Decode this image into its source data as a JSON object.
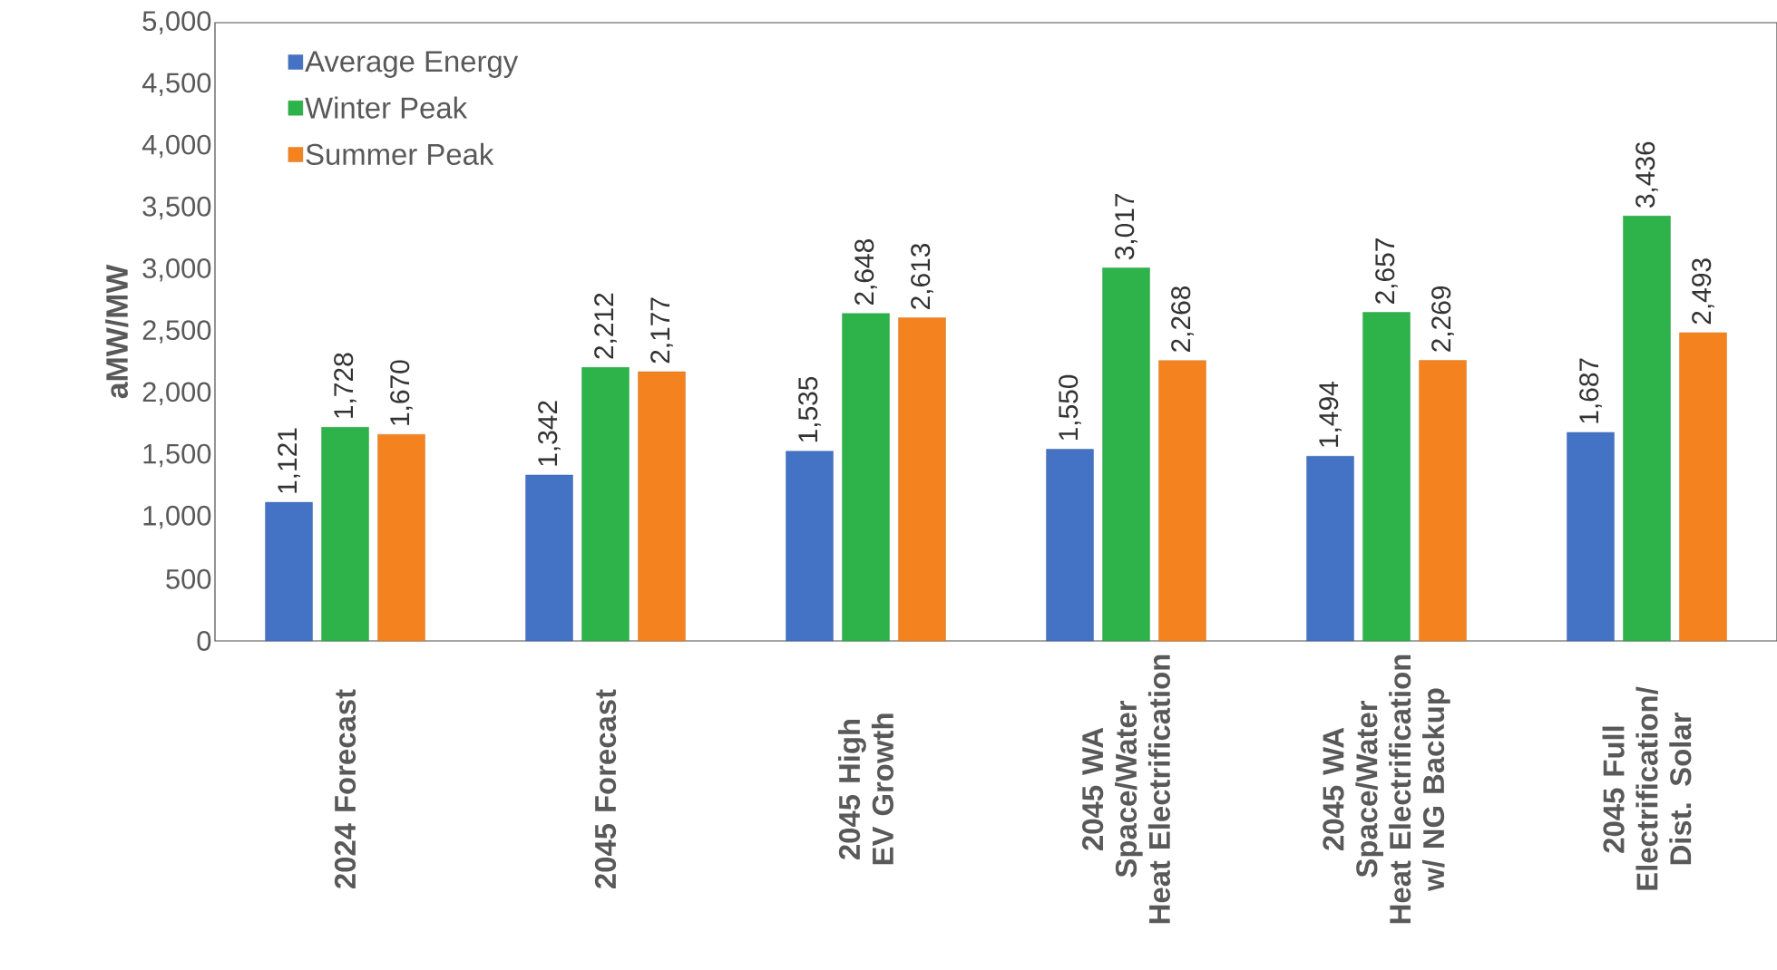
{
  "chart_data": {
    "type": "bar",
    "ylabel": "aMW/MW",
    "categories": [
      "2024 Forecast",
      "2045 Forecast",
      "2045 High EV Growth",
      "2045 WA Space/Water Heat Electrification",
      "2045 WA Space/Water Heat Electrification w/ NG Backup",
      "2045 Full Electrification/ Dist. Solar"
    ],
    "series": [
      {
        "name": "Average Energy",
        "color": "#4472c4",
        "values": [
          1121,
          1342,
          1535,
          1550,
          1494,
          1687
        ],
        "value_labels": [
          "1,121",
          "1,342",
          "1,535",
          "1,550",
          "1,494",
          "1,687"
        ]
      },
      {
        "name": "Winter Peak",
        "color": "#2db34a",
        "values": [
          1728,
          2212,
          2648,
          3017,
          2657,
          3436
        ],
        "value_labels": [
          "1,728",
          "2,212",
          "2,648",
          "3,017",
          "2,657",
          "3,436"
        ]
      },
      {
        "name": "Summer Peak",
        "color": "#f4831f",
        "values": [
          1670,
          2177,
          2613,
          2268,
          2269,
          2493
        ],
        "value_labels": [
          "1,670",
          "2,177",
          "2,613",
          "2,268",
          "2,269",
          "2,493"
        ]
      }
    ],
    "ylim": [
      0,
      5000
    ],
    "yticks": [
      0,
      500,
      {
        "value": 1000,
        "label": "1,000"
      },
      {
        "value": 1500,
        "label": "1,500"
      },
      {
        "value": 2000,
        "label": "2,000"
      },
      {
        "value": 2500,
        "label": "2,500"
      },
      {
        "value": 3000,
        "label": "3,000"
      },
      {
        "value": 3500,
        "label": "3,500"
      },
      {
        "value": 4000,
        "label": "4,000"
      },
      {
        "value": 4500,
        "label": "4,500"
      },
      {
        "value": 5000,
        "label": "5,000"
      }
    ],
    "legend": "top left"
  }
}
